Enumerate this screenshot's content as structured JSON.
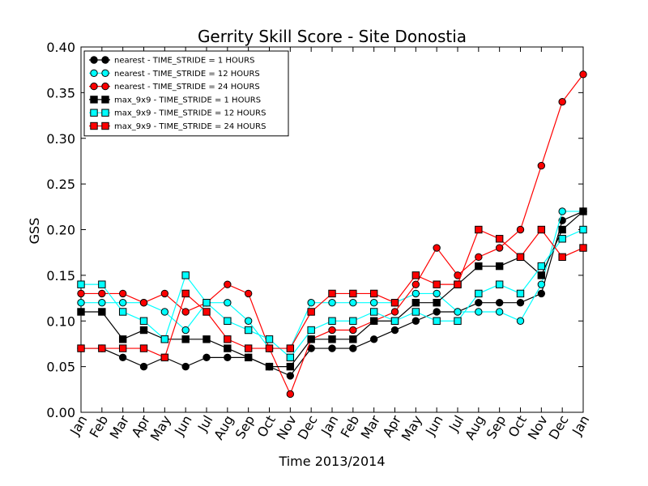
{
  "chart_data": {
    "type": "line",
    "title": "Gerrity Skill Score - Site Donostia",
    "xlabel": "Time 2013/2014",
    "ylabel": "GSS",
    "categories": [
      "Jan",
      "Feb",
      "Mar",
      "Apr",
      "May",
      "Jun",
      "Jul",
      "Aug",
      "Sep",
      "Oct",
      "Nov",
      "Dec",
      "Jan",
      "Feb",
      "Mar",
      "Apr",
      "May",
      "Jun",
      "Jul",
      "Aug",
      "Sep",
      "Oct",
      "Nov",
      "Dec",
      "Jan"
    ],
    "ylim": [
      0.0,
      0.4
    ],
    "yticks": [
      "0.00",
      "0.05",
      "0.10",
      "0.15",
      "0.20",
      "0.25",
      "0.30",
      "0.35",
      "0.40"
    ],
    "grid": false,
    "legend_position": "top-left",
    "series": [
      {
        "name": "nearest - TIME_STRIDE = 1 HOURS",
        "color": "#000000",
        "marker": "circle",
        "values": [
          0.07,
          0.07,
          0.06,
          0.05,
          0.06,
          0.05,
          0.06,
          0.06,
          0.06,
          0.05,
          0.04,
          0.07,
          0.07,
          0.07,
          0.08,
          0.09,
          0.1,
          0.11,
          0.11,
          0.12,
          0.12,
          0.12,
          0.13,
          0.21,
          0.22
        ]
      },
      {
        "name": "nearest - TIME_STRIDE = 12 HOURS",
        "color": "#00ffff",
        "marker": "circle",
        "values": [
          0.12,
          0.12,
          0.12,
          0.12,
          0.11,
          0.09,
          0.12,
          0.12,
          0.1,
          0.07,
          0.07,
          0.12,
          0.12,
          0.12,
          0.12,
          0.12,
          0.13,
          0.13,
          0.11,
          0.11,
          0.11,
          0.1,
          0.14,
          0.22,
          0.22
        ]
      },
      {
        "name": "nearest - TIME_STRIDE = 24 HOURS",
        "color": "#ff0000",
        "marker": "circle",
        "values": [
          0.13,
          0.13,
          0.13,
          0.12,
          0.13,
          0.11,
          0.12,
          0.14,
          0.13,
          0.07,
          0.02,
          0.08,
          0.09,
          0.09,
          0.1,
          0.11,
          0.14,
          0.18,
          0.15,
          0.17,
          0.18,
          0.2,
          0.27,
          0.34,
          0.37
        ]
      },
      {
        "name": "max_9x9 - TIME_STRIDE = 1 HOURS",
        "color": "#000000",
        "marker": "square",
        "values": [
          0.11,
          0.11,
          0.08,
          0.09,
          0.08,
          0.08,
          0.08,
          0.07,
          0.06,
          0.05,
          0.05,
          0.08,
          0.08,
          0.08,
          0.1,
          0.1,
          0.12,
          0.12,
          0.14,
          0.16,
          0.16,
          0.17,
          0.15,
          0.2,
          0.22
        ]
      },
      {
        "name": "max_9x9 - TIME_STRIDE = 12 HOURS",
        "color": "#00ffff",
        "marker": "square",
        "values": [
          0.14,
          0.14,
          0.11,
          0.1,
          0.08,
          0.15,
          0.12,
          0.1,
          0.09,
          0.08,
          0.06,
          0.09,
          0.1,
          0.1,
          0.11,
          0.1,
          0.11,
          0.1,
          0.1,
          0.13,
          0.14,
          0.13,
          0.16,
          0.19,
          0.2
        ]
      },
      {
        "name": "max_9x9 - TIME_STRIDE = 24 HOURS",
        "color": "#ff0000",
        "marker": "square",
        "values": [
          0.07,
          0.07,
          0.07,
          0.07,
          0.06,
          0.13,
          0.11,
          0.08,
          0.07,
          0.07,
          0.07,
          0.11,
          0.13,
          0.13,
          0.13,
          0.12,
          0.15,
          0.14,
          0.14,
          0.2,
          0.19,
          0.17,
          0.2,
          0.17,
          0.18
        ]
      }
    ]
  }
}
